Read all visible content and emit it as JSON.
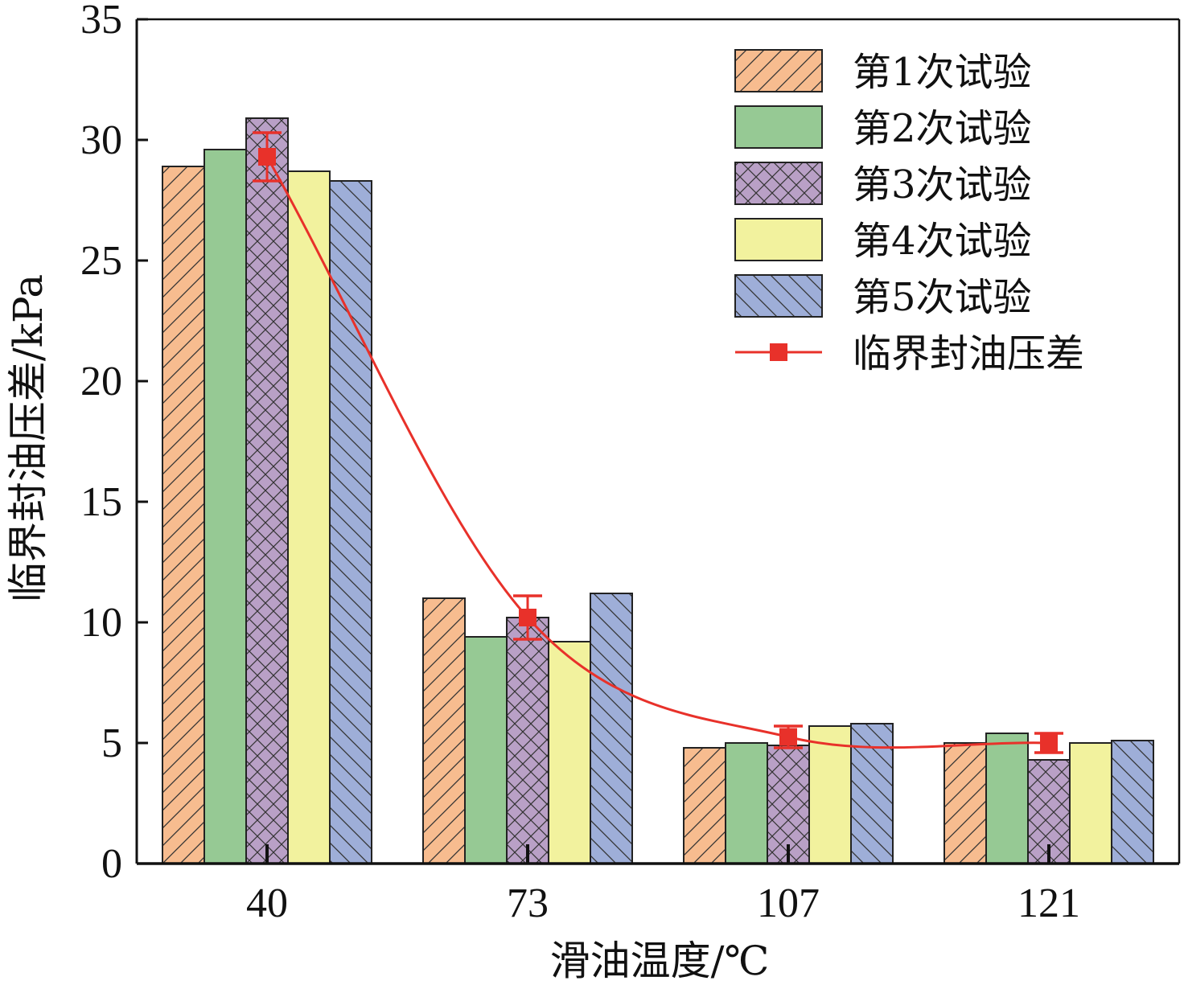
{
  "chart_data": {
    "type": "bar",
    "categories": [
      "40",
      "73",
      "107",
      "121"
    ],
    "xlabel": "滑油温度/℃",
    "ylabel": "临界封油压差/kPa",
    "ylim": [
      0,
      35
    ],
    "yticks": [
      0,
      5,
      10,
      15,
      20,
      25,
      30,
      35
    ],
    "grid": false,
    "legend_position": "top-right",
    "series": [
      {
        "name": "第1次试验",
        "values": [
          28.9,
          11.0,
          4.8,
          5.0
        ],
        "color": "#f7bc8f",
        "pattern": "diag-up"
      },
      {
        "name": "第2次试验",
        "values": [
          29.6,
          9.4,
          5.0,
          5.4
        ],
        "color": "#96c994",
        "pattern": "none"
      },
      {
        "name": "第3次试验",
        "values": [
          30.9,
          10.2,
          4.9,
          4.3
        ],
        "color": "#b9a0c6",
        "pattern": "cross"
      },
      {
        "name": "第4次试验",
        "values": [
          28.7,
          9.2,
          5.7,
          5.0
        ],
        "color": "#f2f29e",
        "pattern": "none"
      },
      {
        "name": "第5次试验",
        "values": [
          28.3,
          11.2,
          5.8,
          5.1
        ],
        "color": "#9eaed8",
        "pattern": "diag-down"
      }
    ],
    "line_series": {
      "name": "临界封油压差",
      "values": [
        29.3,
        10.2,
        5.25,
        5.0
      ],
      "error": [
        1.0,
        0.9,
        0.45,
        0.4
      ],
      "color": "#e8312a",
      "marker": "square"
    }
  }
}
